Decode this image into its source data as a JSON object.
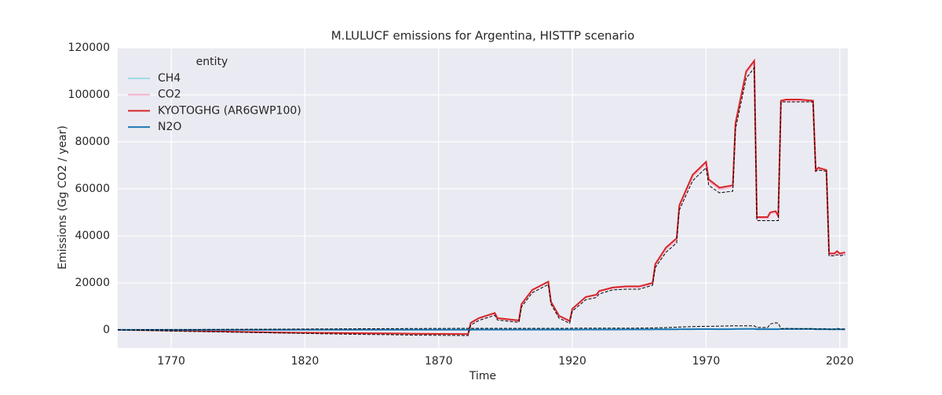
{
  "chart_data": {
    "type": "line",
    "title": "M.LULUCF emissions for Argentina, HISTTP scenario",
    "xlabel": "Time",
    "ylabel": "Emissions (Gg CO2 / year)",
    "legend_title": "entity",
    "legend_position": "upper left",
    "grid": true,
    "xlim": [
      1750,
      2023
    ],
    "ylim": [
      -7700,
      120000
    ],
    "xticks": [
      1770,
      1820,
      1870,
      1920,
      1970,
      2020
    ],
    "yticks": [
      0,
      20000,
      40000,
      60000,
      80000,
      100000,
      120000
    ],
    "x": [
      1750,
      1760,
      1770,
      1780,
      1790,
      1800,
      1810,
      1820,
      1830,
      1840,
      1850,
      1860,
      1870,
      1881,
      1882,
      1885,
      1891,
      1892,
      1900,
      1901,
      1905,
      1911,
      1912,
      1915,
      1919,
      1920,
      1925,
      1929,
      1930,
      1935,
      1940,
      1945,
      1950,
      1951,
      1955,
      1959,
      1960,
      1965,
      1970,
      1971,
      1975,
      1980,
      1981,
      1985,
      1988,
      1989,
      1993,
      1994,
      1996,
      1997,
      1998,
      2000,
      2005,
      2010,
      2011,
      2012,
      2015,
      2016,
      2018,
      2019,
      2020,
      2022
    ],
    "series": [
      {
        "name": "CH4",
        "color": "#9edae5",
        "values": [
          0,
          20,
          40,
          60,
          80,
          100,
          120,
          140,
          160,
          180,
          200,
          220,
          240,
          260,
          260,
          260,
          270,
          270,
          280,
          280,
          290,
          300,
          300,
          300,
          300,
          310,
          320,
          330,
          330,
          340,
          350,
          360,
          370,
          380,
          400,
          420,
          430,
          450,
          470,
          470,
          480,
          490,
          490,
          500,
          500,
          500,
          500,
          500,
          500,
          500,
          500,
          500,
          500,
          500,
          450,
          450,
          450,
          400,
          400,
          400,
          400,
          400
        ]
      },
      {
        "name": "CO2",
        "color": "#f7b6d2",
        "values": [
          0,
          -100,
          -300,
          -500,
          -700,
          -900,
          -1100,
          -1200,
          -1300,
          -1400,
          -1500,
          -1600,
          -1700,
          -1800,
          2800,
          4800,
          7000,
          4800,
          3800,
          10800,
          16800,
          20300,
          11800,
          5800,
          3600,
          8800,
          13800,
          14800,
          16300,
          17800,
          18300,
          18200,
          19600,
          27500,
          34300,
          38200,
          52200,
          65200,
          70800,
          63300,
          59800,
          60800,
          87300,
          109300,
          113800,
          47500,
          47500,
          49500,
          50000,
          48000,
          97000,
          97500,
          97500,
          97000,
          67500,
          68500,
          67500,
          32000,
          32000,
          33000,
          32000,
          32500
        ]
      },
      {
        "name": "KYOTOGHG (AR6GWP100)",
        "color": "#d62728",
        "values": [
          0,
          -100,
          -300,
          -500,
          -700,
          -900,
          -1100,
          -1200,
          -1300,
          -1400,
          -1500,
          -1600,
          -1700,
          -1800,
          3000,
          5000,
          7200,
          5000,
          4000,
          11000,
          17000,
          20500,
          12000,
          6000,
          3800,
          9000,
          14000,
          15000,
          16500,
          18000,
          18500,
          18500,
          20000,
          28000,
          35000,
          39000,
          53000,
          66000,
          71500,
          64000,
          60500,
          61500,
          88000,
          110000,
          114500,
          48000,
          48000,
          50000,
          50500,
          48500,
          97500,
          98000,
          98000,
          97500,
          68000,
          69000,
          68000,
          32500,
          32500,
          33500,
          32500,
          33000
        ]
      },
      {
        "name": "N2O",
        "color": "#1f77b4",
        "values": [
          0,
          5,
          10,
          15,
          20,
          25,
          30,
          35,
          40,
          45,
          50,
          55,
          60,
          65,
          70,
          75,
          80,
          80,
          80,
          90,
          100,
          110,
          100,
          90,
          90,
          100,
          120,
          130,
          140,
          150,
          160,
          170,
          180,
          200,
          220,
          240,
          260,
          280,
          300,
          290,
          280,
          290,
          330,
          380,
          390,
          250,
          250,
          260,
          270,
          260,
          350,
          360,
          360,
          350,
          280,
          280,
          280,
          200,
          200,
          210,
          200,
          200
        ]
      },
      {
        "color": "#000000",
        "dash": true,
        "values": [
          0,
          -200,
          -500,
          -700,
          -900,
          -1100,
          -1300,
          -1500,
          -1700,
          -1900,
          -2000,
          -2200,
          -2300,
          -2400,
          2000,
          4000,
          6200,
          4200,
          3200,
          9800,
          15800,
          19300,
          11000,
          5000,
          2800,
          8000,
          12800,
          13800,
          15300,
          17000,
          17300,
          17300,
          19000,
          26500,
          33000,
          37000,
          51000,
          63500,
          69000,
          61500,
          58300,
          59000,
          85500,
          107000,
          111500,
          46500,
          46500,
          46500,
          46500,
          46500,
          97000,
          97000,
          97000,
          97000,
          67500,
          68000,
          67500,
          31500,
          31500,
          32000,
          31500,
          32000
        ]
      },
      {
        "color": "#000000",
        "dash": true,
        "values": [
          0,
          50,
          100,
          150,
          200,
          250,
          300,
          350,
          400,
          450,
          500,
          550,
          600,
          650,
          650,
          650,
          650,
          650,
          650,
          650,
          650,
          650,
          650,
          650,
          650,
          700,
          700,
          700,
          700,
          700,
          700,
          750,
          800,
          850,
          950,
          1150,
          1200,
          1400,
          1500,
          1500,
          1600,
          1700,
          1700,
          1700,
          1700,
          1000,
          1000,
          2500,
          3000,
          2800,
          500,
          600,
          500,
          500,
          400,
          400,
          400,
          300,
          300,
          700,
          300,
          300
        ]
      }
    ]
  }
}
